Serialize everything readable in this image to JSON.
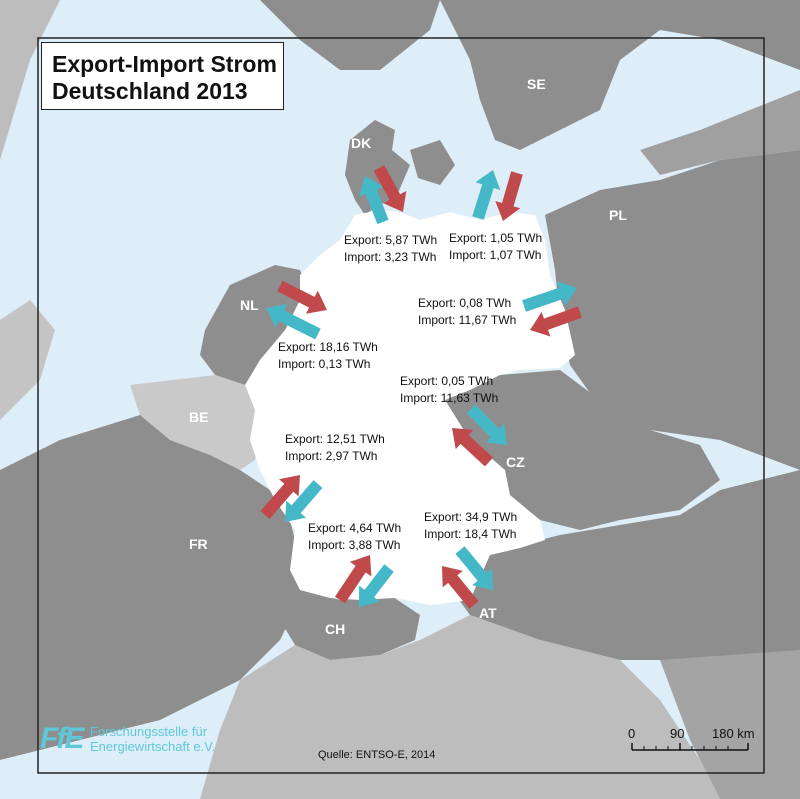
{
  "title": {
    "line1": "Export-Import Strom",
    "line2": "Deutschland 2013"
  },
  "countries": {
    "dk": "DK",
    "se": "SE",
    "pl": "PL",
    "nl": "NL",
    "be": "BE",
    "cz": "CZ",
    "fr": "FR",
    "ch": "CH",
    "at": "AT"
  },
  "flows": {
    "dk": {
      "export": "Export: 5,87 TWh",
      "import": "Import: 3,23 TWh"
    },
    "se": {
      "export": "Export: 1,05 TWh",
      "import": "Import: 1,07 TWh"
    },
    "pl": {
      "export": "Export: 0,08 TWh",
      "import": "Import: 11,67 TWh"
    },
    "nl": {
      "export": "Export: 18,16 TWh",
      "import": "Import: 0,13 TWh"
    },
    "cz": {
      "export": "Export: 0,05 TWh",
      "import": "Import: 11,63 TWh"
    },
    "fr": {
      "export": "Export: 12,51 TWh",
      "import": "Import: 2,97 TWh"
    },
    "ch": {
      "export": "Export: 4,64 TWh",
      "import": "Import: 3,88 TWh"
    },
    "at": {
      "export": "Export: 34,9 TWh",
      "import": "Import: 18,4 TWh"
    }
  },
  "source": "Quelle: ENTSO-E, 2014",
  "logo": {
    "mark": "FfE",
    "line1": "Forschungsstelle für",
    "line2": "Energiewirtschaft e.V."
  },
  "scale": {
    "tick0": "0",
    "tick1": "90",
    "tick2": "180 km"
  },
  "colors": {
    "export_arrow": "#45b8c8",
    "import_arrow": "#c0494b",
    "germany": "#ffffff",
    "neighbors": "#8e8e8e",
    "belgium": "#c9c9c9",
    "water": "#ddeef8"
  }
}
